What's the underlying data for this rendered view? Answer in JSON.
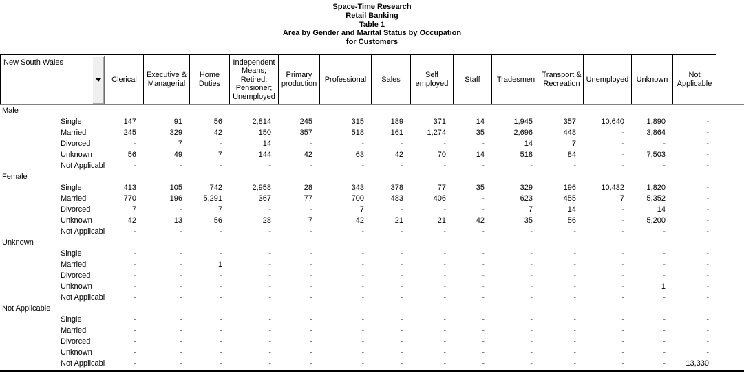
{
  "title_block": {
    "lines": [
      "Space-Time Research",
      "Retail Banking",
      "Table 1",
      "Area by Gender and Marital Status by Occupation",
      "for Customers"
    ]
  },
  "colors": {
    "background": "#ffffff",
    "text": "#000000",
    "line_black": "#000000",
    "line_grey": "#808080",
    "button_face": "#f0f0f0"
  },
  "icons": {
    "area_dropdown": "chevron-down"
  },
  "table": {
    "area_label": "New South Wales",
    "columns": [
      "Clerical",
      "Executive & Managerial",
      "Home Duties",
      "Independent Means; Retired; Pensioner; Unemployed",
      "Primary production",
      "Professional",
      "Sales",
      "Self employed",
      "Staff",
      "Tradesmen",
      "Transport & Recreation",
      "Unemployed",
      "Unknown",
      "Not Applicable"
    ],
    "groups": [
      {
        "label": "Male",
        "rows": [
          {
            "label": "Single",
            "values": [
              "147",
              "91",
              "56",
              "2,814",
              "245",
              "315",
              "189",
              "371",
              "14",
              "1,945",
              "357",
              "10,640",
              "1,890",
              "-"
            ]
          },
          {
            "label": "Married",
            "values": [
              "245",
              "329",
              "42",
              "150",
              "357",
              "518",
              "161",
              "1,274",
              "35",
              "2,696",
              "448",
              "-",
              "3,864",
              "-"
            ]
          },
          {
            "label": "Divorced",
            "values": [
              "-",
              "7",
              "-",
              "14",
              "-",
              "-",
              "-",
              "-",
              "-",
              "14",
              "7",
              "-",
              "-",
              "-"
            ]
          },
          {
            "label": "Unknown",
            "values": [
              "56",
              "49",
              "7",
              "144",
              "42",
              "63",
              "42",
              "70",
              "14",
              "518",
              "84",
              "-",
              "7,503",
              "-"
            ]
          },
          {
            "label": "Not Applicable",
            "values": [
              "-",
              "-",
              "-",
              "-",
              "-",
              "-",
              "-",
              "-",
              "-",
              "-",
              "-",
              "-",
              "-",
              "-"
            ]
          }
        ]
      },
      {
        "label": "Female",
        "rows": [
          {
            "label": "Single",
            "values": [
              "413",
              "105",
              "742",
              "2,958",
              "28",
              "343",
              "378",
              "77",
              "35",
              "329",
              "196",
              "10,432",
              "1,820",
              "-"
            ]
          },
          {
            "label": "Married",
            "values": [
              "770",
              "196",
              "5,291",
              "367",
              "77",
              "700",
              "483",
              "406",
              "-",
              "623",
              "455",
              "7",
              "5,352",
              "-"
            ]
          },
          {
            "label": "Divorced",
            "values": [
              "7",
              "-",
              "7",
              "-",
              "-",
              "7",
              "-",
              "-",
              "-",
              "7",
              "14",
              "-",
              "14",
              "-"
            ]
          },
          {
            "label": "Unknown",
            "values": [
              "42",
              "13",
              "56",
              "28",
              "7",
              "42",
              "21",
              "21",
              "42",
              "35",
              "56",
              "-",
              "5,200",
              "-"
            ]
          },
          {
            "label": "Not Applicable",
            "values": [
              "-",
              "-",
              "-",
              "-",
              "-",
              "-",
              "-",
              "-",
              "-",
              "-",
              "-",
              "-",
              "-",
              "-"
            ]
          }
        ]
      },
      {
        "label": "Unknown",
        "rows": [
          {
            "label": "Single",
            "values": [
              "-",
              "-",
              "-",
              "-",
              "-",
              "-",
              "-",
              "-",
              "-",
              "-",
              "-",
              "-",
              "-",
              "-"
            ]
          },
          {
            "label": "Married",
            "values": [
              "-",
              "-",
              "1",
              "-",
              "-",
              "-",
              "-",
              "-",
              "-",
              "-",
              "-",
              "-",
              "-",
              "-"
            ]
          },
          {
            "label": "Divorced",
            "values": [
              "-",
              "-",
              "-",
              "-",
              "-",
              "-",
              "-",
              "-",
              "-",
              "-",
              "-",
              "-",
              "-",
              "-"
            ]
          },
          {
            "label": "Unknown",
            "values": [
              "-",
              "-",
              "-",
              "-",
              "-",
              "-",
              "-",
              "-",
              "-",
              "-",
              "-",
              "-",
              "1",
              "-"
            ]
          },
          {
            "label": "Not Applicable",
            "values": [
              "-",
              "-",
              "-",
              "-",
              "-",
              "-",
              "-",
              "-",
              "-",
              "-",
              "-",
              "-",
              "-",
              "-"
            ]
          }
        ]
      },
      {
        "label": "Not Applicable",
        "rows": [
          {
            "label": "Single",
            "values": [
              "-",
              "-",
              "-",
              "-",
              "-",
              "-",
              "-",
              "-",
              "-",
              "-",
              "-",
              "-",
              "-",
              "-"
            ]
          },
          {
            "label": "Married",
            "values": [
              "-",
              "-",
              "-",
              "-",
              "-",
              "-",
              "-",
              "-",
              "-",
              "-",
              "-",
              "-",
              "-",
              "-"
            ]
          },
          {
            "label": "Divorced",
            "values": [
              "-",
              "-",
              "-",
              "-",
              "-",
              "-",
              "-",
              "-",
              "-",
              "-",
              "-",
              "-",
              "-",
              "-"
            ]
          },
          {
            "label": "Unknown",
            "values": [
              "-",
              "-",
              "-",
              "-",
              "-",
              "-",
              "-",
              "-",
              "-",
              "-",
              "-",
              "-",
              "-",
              "-"
            ]
          },
          {
            "label": "Not Applicable",
            "values": [
              "-",
              "-",
              "-",
              "-",
              "-",
              "-",
              "-",
              "-",
              "-",
              "-",
              "-",
              "-",
              "-",
              "13,330"
            ]
          }
        ]
      }
    ]
  }
}
